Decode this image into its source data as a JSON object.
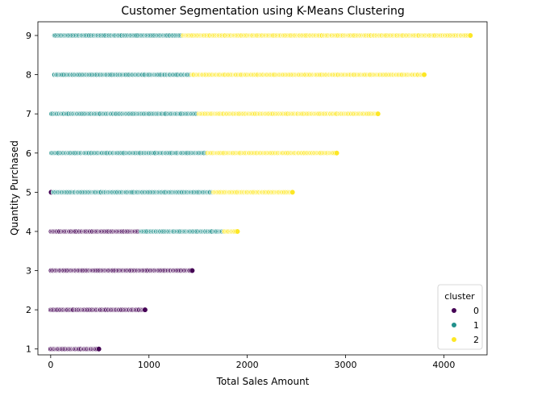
{
  "chart_data": {
    "type": "scatter",
    "title": "Customer Segmentation using K-Means Clustering",
    "xlabel": "Total Sales Amount",
    "ylabel": "Quantity Purchased",
    "xlim": [
      -130,
      4440
    ],
    "ylim": [
      0.85,
      9.35
    ],
    "xticks": [
      0,
      1000,
      2000,
      3000,
      4000
    ],
    "yticks": [
      1,
      2,
      3,
      4,
      5,
      6,
      7,
      8,
      9
    ],
    "grid": false,
    "legend": {
      "title": "cluster",
      "placement": "lower-right"
    },
    "series": [
      {
        "name": "0",
        "color": "#440154",
        "ranges": [
          {
            "quantity": 1,
            "sales": [
              0,
              490
            ]
          },
          {
            "quantity": 2,
            "sales": [
              0,
              960
            ]
          },
          {
            "quantity": 3,
            "sales": [
              5,
              1440
            ]
          },
          {
            "quantity": 4,
            "sales": [
              5,
              920
            ]
          },
          {
            "quantity": 5,
            "sales": [
              5,
              30
            ]
          }
        ]
      },
      {
        "name": "1",
        "color": "#21918c",
        "ranges": [
          {
            "quantity": 4,
            "sales": [
              920,
              1760
            ]
          },
          {
            "quantity": 5,
            "sales": [
              30,
              1650
            ]
          },
          {
            "quantity": 6,
            "sales": [
              10,
              1590
            ]
          },
          {
            "quantity": 7,
            "sales": [
              10,
              1500
            ]
          },
          {
            "quantity": 8,
            "sales": [
              40,
              1430
            ]
          },
          {
            "quantity": 9,
            "sales": [
              40,
              1340
            ]
          }
        ]
      },
      {
        "name": "2",
        "color": "#fde725",
        "ranges": [
          {
            "quantity": 4,
            "sales": [
              1770,
              1900
            ]
          },
          {
            "quantity": 5,
            "sales": [
              1660,
              2460
            ]
          },
          {
            "quantity": 6,
            "sales": [
              1600,
              2910
            ]
          },
          {
            "quantity": 7,
            "sales": [
              1510,
              3330
            ]
          },
          {
            "quantity": 8,
            "sales": [
              1440,
              3800
            ]
          },
          {
            "quantity": 9,
            "sales": [
              1350,
              4270
            ]
          }
        ]
      }
    ]
  }
}
